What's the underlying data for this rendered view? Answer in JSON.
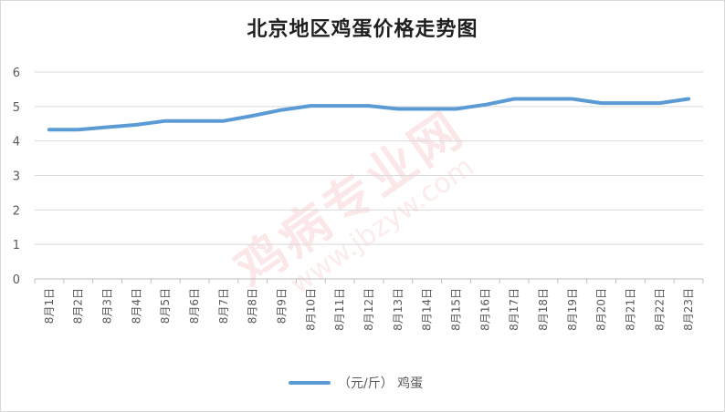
{
  "chart_data": {
    "type": "line",
    "title": "北京地区鸡蛋价格走势图",
    "categories": [
      "8月1日",
      "8月2日",
      "8月3日",
      "8月4日",
      "8月5日",
      "8月6日",
      "8月7日",
      "8月8日",
      "8月9日",
      "8月10日",
      "8月11日",
      "8月12日",
      "8月13日",
      "8月14日",
      "8月15日",
      "8月16日",
      "8月17日",
      "8月18日",
      "8月19日",
      "8月20日",
      "8月21日",
      "8月22日",
      "8月23日"
    ],
    "series": [
      {
        "name": "（元/斤） 鸡蛋",
        "color": "#5b9bd5",
        "values": [
          4.33,
          4.33,
          4.4,
          4.47,
          4.58,
          4.58,
          4.58,
          4.73,
          4.9,
          5.02,
          5.02,
          5.02,
          4.93,
          4.93,
          4.93,
          5.05,
          5.22,
          5.22,
          5.22,
          5.1,
          5.1,
          5.1,
          5.22
        ]
      }
    ],
    "ylim": [
      0,
      6
    ],
    "yticks": [
      0,
      1,
      2,
      3,
      4,
      5,
      6
    ],
    "grid": true,
    "legend": "bottom"
  },
  "watermark": {
    "main": "鸡病专业网",
    "url": "www.jbzyw.com"
  }
}
